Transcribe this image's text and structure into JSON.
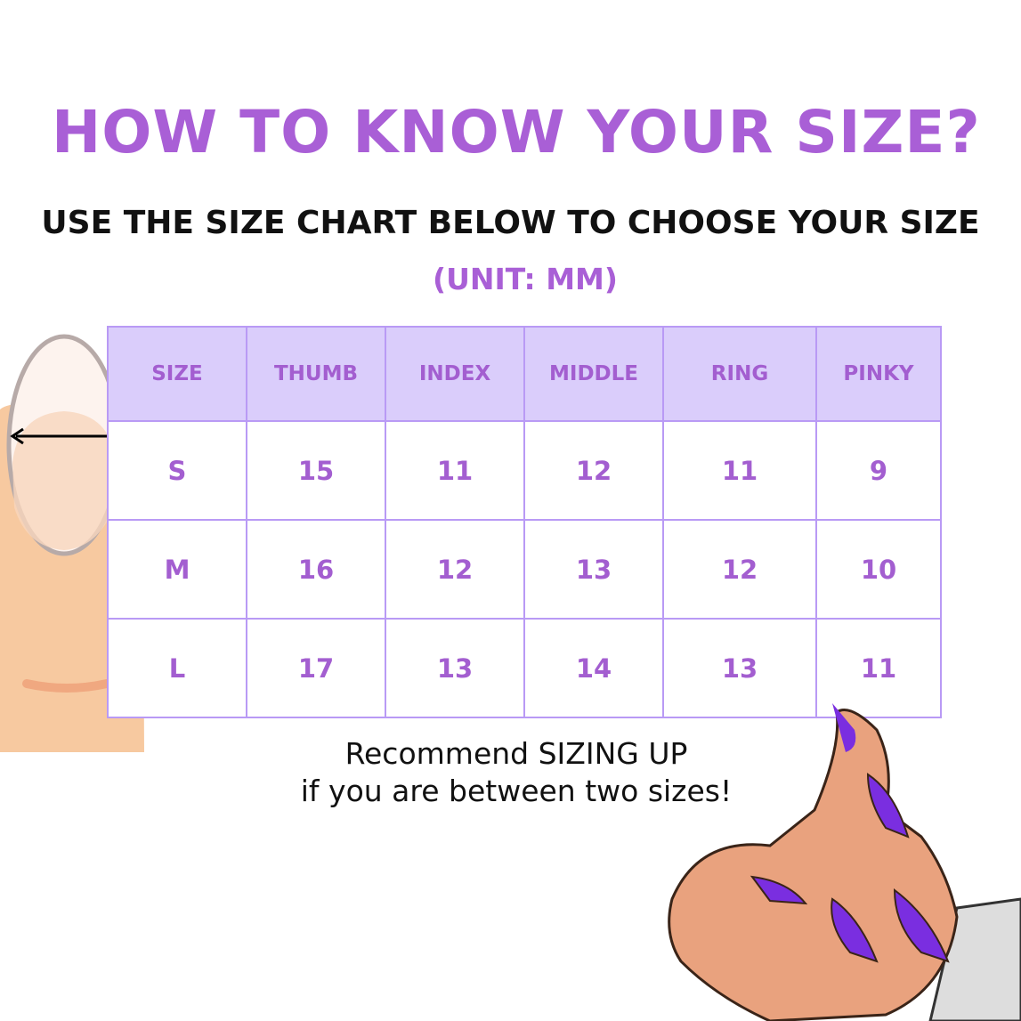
{
  "title": "HOW TO KNOW YOUR SIZE?",
  "subtitle": "USE THE SIZE CHART BELOW TO CHOOSE YOUR SIZE",
  "unit": "(UNIT: MM)",
  "table": {
    "headers": [
      "SIZE",
      "THUMB",
      "INDEX",
      "MIDDLE",
      "RING",
      "PINKY"
    ],
    "rows": [
      [
        "S",
        "15",
        "11",
        "12",
        "11",
        "9"
      ],
      [
        "M",
        "16",
        "12",
        "13",
        "12",
        "10"
      ],
      [
        "L",
        "17",
        "13",
        "14",
        "13",
        "11"
      ]
    ]
  },
  "note": {
    "line1": "Recommend SIZING UP",
    "line2": "if you are between two sizes!"
  },
  "colors": {
    "accent": "#a95fd6",
    "header_bg": "#dacdfb",
    "border": "#b99af5",
    "nail_polish": "#7a2ee0"
  }
}
